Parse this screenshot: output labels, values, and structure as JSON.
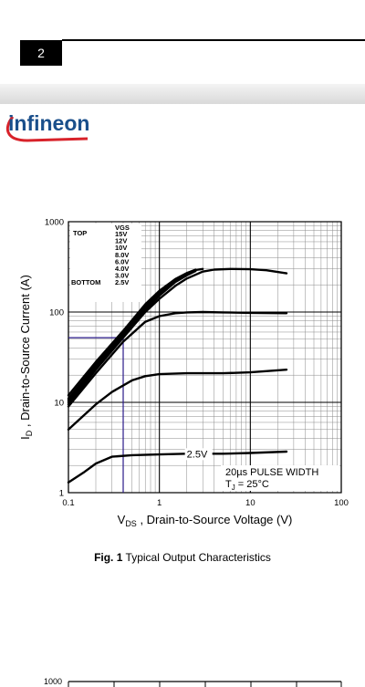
{
  "header": {
    "page_number": "2"
  },
  "logo": {
    "text": "infineon",
    "color": "#1a4f8b",
    "swoosh_color": "#d8222a"
  },
  "chart_data": {
    "type": "line",
    "x_scale": "log",
    "y_scale": "log",
    "xlim": [
      0.1,
      100
    ],
    "ylim": [
      1,
      1000
    ],
    "x_ticks": [
      0.1,
      1,
      10,
      100
    ],
    "x_tick_labels": [
      "0.1",
      "1",
      "10",
      "100"
    ],
    "y_ticks": [
      1,
      10,
      100,
      1000
    ],
    "y_tick_labels": [
      "1",
      "10",
      "100",
      "1000"
    ],
    "grid": true,
    "xlabel_main": "V",
    "xlabel_sub": "DS",
    "xlabel_rest": " , Drain-to-Source Voltage (V)",
    "ylabel_main": "I",
    "ylabel_sub": "D",
    "ylabel_rest": " , Drain-to-Source Current (A)",
    "legend": {
      "header": "VGS",
      "top_label": "TOP",
      "bottom_label": "BOTTOM",
      "entries": [
        "15V",
        "12V",
        "10V",
        "8.0V",
        "6.0V",
        "4.0V",
        "3.0V",
        "2.5V"
      ]
    },
    "annotations": {
      "curve_label": "2.5V",
      "pulse_width": "20µs PULSE WIDTH",
      "temp_main": "T",
      "temp_sub": "J",
      "temp_rest": " = 25°C"
    },
    "marker": {
      "x": 0.4,
      "y": 52,
      "color": "#2a1a8a"
    },
    "series": [
      {
        "x": [
          0.1,
          0.2,
          0.4,
          0.7,
          1.0,
          1.5,
          2.0,
          2.5,
          3.0
        ],
        "y": [
          12,
          28,
          62,
          122,
          172,
          232,
          270,
          292,
          300
        ]
      },
      {
        "x": [
          0.1,
          0.2,
          0.4,
          0.7,
          1.0,
          1.5,
          2.0,
          2.5
        ],
        "y": [
          11,
          26,
          58,
          115,
          165,
          228,
          268,
          295
        ]
      },
      {
        "x": [
          0.1,
          0.2,
          0.4,
          0.7,
          1.0,
          1.5,
          2.0,
          2.5
        ],
        "y": [
          10.5,
          25,
          56,
          110,
          158,
          222,
          262,
          290
        ]
      },
      {
        "x": [
          0.1,
          0.2,
          0.4,
          0.7,
          1.0,
          1.5,
          2.0,
          2.5
        ],
        "y": [
          10,
          24,
          54,
          105,
          152,
          215,
          255,
          285
        ]
      },
      {
        "x": [
          0.1,
          0.2,
          0.4,
          0.7,
          1.0,
          1.5,
          2.0,
          3.0,
          4.0,
          6.0,
          10.0,
          15.0,
          25.0
        ],
        "y": [
          9.5,
          23,
          52,
          100,
          140,
          195,
          235,
          280,
          295,
          300,
          298,
          290,
          268
        ]
      },
      {
        "x": [
          0.1,
          0.2,
          0.4,
          0.7,
          1.0,
          1.5,
          2.0,
          3.0,
          5.0,
          10.0,
          25.0
        ],
        "y": [
          9,
          21,
          47,
          78,
          90,
          97,
          99,
          100,
          99,
          98,
          97
        ]
      },
      {
        "x": [
          0.1,
          0.2,
          0.3,
          0.5,
          0.7,
          1.0,
          2.0,
          5.0,
          10.0,
          25.0
        ],
        "y": [
          5,
          9.5,
          13,
          17.5,
          19.5,
          20.5,
          21,
          21,
          21.5,
          23
        ]
      },
      {
        "x": [
          0.1,
          0.15,
          0.2,
          0.3,
          0.5,
          1.0,
          2.0,
          5.0,
          10.0,
          25.0
        ],
        "y": [
          1.3,
          1.7,
          2.1,
          2.5,
          2.6,
          2.65,
          2.7,
          2.7,
          2.75,
          2.85
        ]
      }
    ]
  },
  "caption": {
    "label": "Fig. 1",
    "text": " Typical Output Characteristics"
  },
  "bottom_chart": {
    "y_tick_label": "1000"
  }
}
